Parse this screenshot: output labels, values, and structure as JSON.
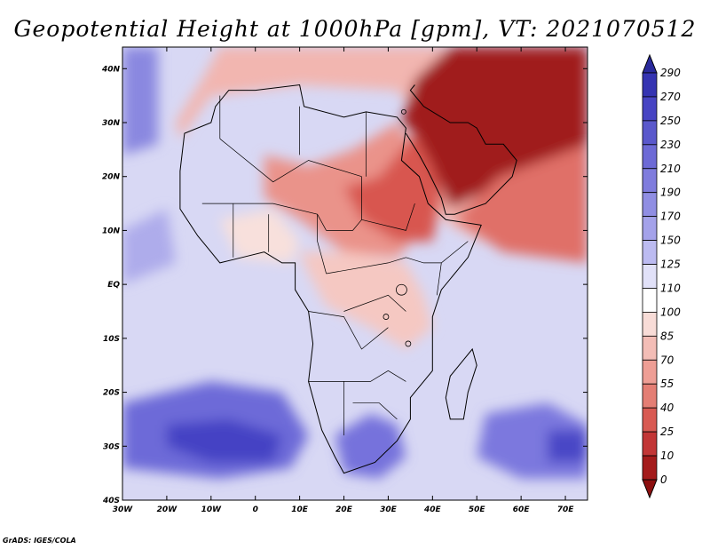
{
  "title": "Geopotential Height at 1000hPa [gpm], VT: 2021070512",
  "credit": "GrADS: IGES/COLA",
  "map": {
    "variable": "Geopotential Height",
    "level": "1000hPa",
    "units": "gpm",
    "valid_time": "2021070512",
    "lon_range": [
      -30,
      75
    ],
    "lat_range": [
      -40,
      44
    ],
    "lon_ticks": [
      {
        "lon": -30,
        "label": "30W"
      },
      {
        "lon": -20,
        "label": "20W"
      },
      {
        "lon": -10,
        "label": "10W"
      },
      {
        "lon": 0,
        "label": "0"
      },
      {
        "lon": 10,
        "label": "10E"
      },
      {
        "lon": 20,
        "label": "20E"
      },
      {
        "lon": 30,
        "label": "30E"
      },
      {
        "lon": 40,
        "label": "40E"
      },
      {
        "lon": 50,
        "label": "50E"
      },
      {
        "lon": 60,
        "label": "60E"
      },
      {
        "lon": 70,
        "label": "70E"
      }
    ],
    "lat_ticks": [
      {
        "lat": 40,
        "label": "40N"
      },
      {
        "lat": 30,
        "label": "30N"
      },
      {
        "lat": 20,
        "label": "20N"
      },
      {
        "lat": 10,
        "label": "10N"
      },
      {
        "lat": 0,
        "label": "EQ"
      },
      {
        "lat": -10,
        "label": "10S"
      },
      {
        "lat": -20,
        "label": "20S"
      },
      {
        "lat": -30,
        "label": "30S"
      },
      {
        "lat": -40,
        "label": "40S"
      }
    ],
    "background_color": "#d8d8f4",
    "field_regions": [
      {
        "name": "north-africa-low",
        "color": "#f2b6b0",
        "lonlat": [
          [
            -17,
            27
          ],
          [
            -10,
            35
          ],
          [
            10,
            37
          ],
          [
            32,
            36
          ],
          [
            38,
            30
          ],
          [
            40,
            14
          ],
          [
            44,
            11
          ],
          [
            51,
            8
          ],
          [
            75,
            8
          ],
          [
            75,
            44
          ],
          [
            -8,
            44
          ],
          [
            -12,
            38
          ],
          [
            -18,
            30
          ]
        ]
      },
      {
        "name": "sahara-low",
        "color": "#ea938a",
        "lonlat": [
          [
            2,
            24
          ],
          [
            12,
            22
          ],
          [
            22,
            25
          ],
          [
            32,
            30
          ],
          [
            38,
            22
          ],
          [
            40,
            12
          ],
          [
            32,
            5
          ],
          [
            20,
            6
          ],
          [
            10,
            12
          ],
          [
            2,
            16
          ]
        ]
      },
      {
        "name": "sudan-ethiopia-low",
        "color": "#d85650",
        "lonlat": [
          [
            20,
            18
          ],
          [
            28,
            20
          ],
          [
            36,
            28
          ],
          [
            40,
            30
          ],
          [
            42,
            16
          ],
          [
            40,
            8
          ],
          [
            32,
            8
          ],
          [
            24,
            12
          ]
        ]
      },
      {
        "name": "arabia-low",
        "color": "#a01b1b",
        "lonlat": [
          [
            33,
            30
          ],
          [
            36,
            38
          ],
          [
            44,
            44
          ],
          [
            75,
            44
          ],
          [
            75,
            20
          ],
          [
            64,
            16
          ],
          [
            54,
            18
          ],
          [
            44,
            14
          ],
          [
            40,
            22
          ],
          [
            36,
            28
          ]
        ]
      },
      {
        "name": "arabian-sea",
        "color": "#e07068",
        "lonlat": [
          [
            45,
            12
          ],
          [
            55,
            20
          ],
          [
            75,
            26
          ],
          [
            75,
            4
          ],
          [
            56,
            6
          ]
        ]
      },
      {
        "name": "central-africa",
        "color": "#f5c8c2",
        "lonlat": [
          [
            10,
            6
          ],
          [
            22,
            6
          ],
          [
            34,
            4
          ],
          [
            38,
            -2
          ],
          [
            40,
            -8
          ],
          [
            34,
            -12
          ],
          [
            26,
            -8
          ],
          [
            16,
            -4
          ],
          [
            12,
            2
          ]
        ]
      },
      {
        "name": "ghana-coast",
        "color": "#f8e0dc",
        "lonlat": [
          [
            -8,
            12
          ],
          [
            4,
            14
          ],
          [
            10,
            8
          ],
          [
            8,
            4
          ],
          [
            -4,
            5
          ]
        ]
      },
      {
        "name": "south-atlantic-high",
        "color": "#6d6ad8",
        "lonlat": [
          [
            -30,
            -22
          ],
          [
            -10,
            -18
          ],
          [
            6,
            -20
          ],
          [
            12,
            -28
          ],
          [
            8,
            -34
          ],
          [
            -8,
            -36
          ],
          [
            -30,
            -34
          ]
        ]
      },
      {
        "name": "south-atlantic-core",
        "color": "#4542c4",
        "lonlat": [
          [
            -20,
            -26
          ],
          [
            -6,
            -25
          ],
          [
            6,
            -28
          ],
          [
            4,
            -33
          ],
          [
            -10,
            -33
          ],
          [
            -20,
            -30
          ]
        ]
      },
      {
        "name": "south-africa-high",
        "color": "#7672dc",
        "lonlat": [
          [
            18,
            -28
          ],
          [
            26,
            -24
          ],
          [
            32,
            -26
          ],
          [
            34,
            -32
          ],
          [
            28,
            -36
          ],
          [
            20,
            -35
          ]
        ]
      },
      {
        "name": "mascarene-high",
        "color": "#7b78de",
        "lonlat": [
          [
            52,
            -24
          ],
          [
            66,
            -22
          ],
          [
            75,
            -26
          ],
          [
            75,
            -36
          ],
          [
            60,
            -36
          ],
          [
            50,
            -32
          ]
        ]
      },
      {
        "name": "mascarene-core",
        "color": "#4a47c6",
        "lonlat": [
          [
            66,
            -27
          ],
          [
            75,
            -27
          ],
          [
            75,
            -33
          ],
          [
            66,
            -33
          ]
        ]
      },
      {
        "name": "north-atlantic-high",
        "color": "#8a88e0",
        "lonlat": [
          [
            -30,
            44
          ],
          [
            -22,
            44
          ],
          [
            -22,
            26
          ],
          [
            -30,
            24
          ]
        ]
      },
      {
        "name": "atlantic-west-mid",
        "color": "#aeaceb",
        "lonlat": [
          [
            -30,
            10
          ],
          [
            -20,
            14
          ],
          [
            -18,
            4
          ],
          [
            -30,
            0
          ]
        ]
      }
    ],
    "land_outline": [
      [
        -17,
        21
      ],
      [
        -16,
        28
      ],
      [
        -10,
        30
      ],
      [
        -9,
        33
      ],
      [
        -6,
        36
      ],
      [
        0,
        36
      ],
      [
        10,
        37
      ],
      [
        11,
        33
      ],
      [
        20,
        31
      ],
      [
        25,
        32
      ],
      [
        32,
        31
      ],
      [
        34,
        29
      ],
      [
        33,
        23
      ],
      [
        37,
        20
      ],
      [
        39,
        15
      ],
      [
        43,
        12
      ],
      [
        51,
        11
      ],
      [
        48,
        5
      ],
      [
        42,
        -1
      ],
      [
        40,
        -6
      ],
      [
        40,
        -11
      ],
      [
        40,
        -16
      ],
      [
        35,
        -21
      ],
      [
        35,
        -25
      ],
      [
        32,
        -29
      ],
      [
        27,
        -33
      ],
      [
        20,
        -35
      ],
      [
        18,
        -32
      ],
      [
        15,
        -27
      ],
      [
        12,
        -18
      ],
      [
        13,
        -11
      ],
      [
        12,
        -5
      ],
      [
        9,
        -1
      ],
      [
        9,
        4
      ],
      [
        6,
        4
      ],
      [
        2,
        6
      ],
      [
        -3,
        5
      ],
      [
        -8,
        4
      ],
      [
        -11,
        7
      ],
      [
        -13,
        9
      ],
      [
        -17,
        14
      ],
      [
        -17,
        21
      ]
    ],
    "madagascar_outline": [
      [
        49,
        -12
      ],
      [
        50,
        -15
      ],
      [
        48,
        -20
      ],
      [
        47,
        -25
      ],
      [
        44,
        -25
      ],
      [
        43,
        -21
      ],
      [
        44,
        -17
      ],
      [
        47,
        -14
      ]
    ],
    "arabia_outline": [
      [
        34,
        28
      ],
      [
        37,
        24
      ],
      [
        39,
        21
      ],
      [
        42,
        16
      ],
      [
        43,
        13
      ],
      [
        45,
        13
      ],
      [
        52,
        15
      ],
      [
        58,
        20
      ],
      [
        59,
        23
      ],
      [
        56,
        26
      ],
      [
        52,
        26
      ],
      [
        50,
        29
      ],
      [
        48,
        30
      ],
      [
        44,
        30
      ],
      [
        38,
        33
      ],
      [
        35,
        36
      ],
      [
        36,
        37
      ]
    ],
    "borders": [
      [
        [
          -8,
          27
        ],
        [
          -8,
          35
        ]
      ],
      [
        [
          -8,
          27
        ],
        [
          4,
          19
        ],
        [
          12,
          23
        ],
        [
          24,
          20
        ]
      ],
      [
        [
          10,
          33
        ],
        [
          10,
          24
        ]
      ],
      [
        [
          25,
          32
        ],
        [
          25,
          20
        ]
      ],
      [
        [
          24,
          20
        ],
        [
          24,
          12
        ],
        [
          22,
          10
        ],
        [
          16,
          10
        ]
      ],
      [
        [
          -12,
          15
        ],
        [
          4,
          15
        ],
        [
          14,
          13
        ],
        [
          16,
          10
        ]
      ],
      [
        [
          14,
          13
        ],
        [
          14,
          8
        ],
        [
          16,
          2
        ]
      ],
      [
        [
          16,
          2
        ],
        [
          30,
          4
        ],
        [
          34,
          5
        ]
      ],
      [
        [
          24,
          12
        ],
        [
          34,
          10
        ],
        [
          36,
          15
        ]
      ],
      [
        [
          20,
          -5
        ],
        [
          30,
          -2
        ],
        [
          34,
          -5
        ]
      ],
      [
        [
          12,
          -5
        ],
        [
          20,
          -6
        ],
        [
          24,
          -12
        ],
        [
          30,
          -8
        ]
      ],
      [
        [
          12,
          -18
        ],
        [
          20,
          -18
        ],
        [
          26,
          -18
        ],
        [
          30,
          -16
        ],
        [
          34,
          -18
        ]
      ],
      [
        [
          20,
          -18
        ],
        [
          20,
          -28
        ]
      ],
      [
        [
          22,
          -22
        ],
        [
          28,
          -22
        ],
        [
          32,
          -25
        ]
      ],
      [
        [
          34,
          5
        ],
        [
          38,
          4
        ],
        [
          42,
          4
        ],
        [
          48,
          8
        ]
      ],
      [
        [
          42,
          4
        ],
        [
          41,
          -2
        ]
      ],
      [
        [
          -5,
          15
        ],
        [
          -5,
          5
        ]
      ],
      [
        [
          3,
          6
        ],
        [
          3,
          13
        ]
      ],
      [
        [
          39,
          15
        ],
        [
          43,
          12
        ]
      ]
    ],
    "lakes": [
      {
        "lon": 33,
        "lat": -1,
        "r": 1.2
      },
      {
        "lon": 34.5,
        "lat": -11,
        "r": 0.6
      },
      {
        "lon": 29.5,
        "lat": -6,
        "r": 0.6
      },
      {
        "lon": 33.5,
        "lat": 32,
        "r": 0.5
      }
    ]
  },
  "colorbar": {
    "levels": [
      "290",
      "270",
      "250",
      "230",
      "210",
      "190",
      "170",
      "150",
      "125",
      "110",
      "100",
      "85",
      "70",
      "55",
      "40",
      "25",
      "10",
      "0"
    ],
    "colors": [
      "#2a2a9c",
      "#3534b2",
      "#4744c3",
      "#5a58cc",
      "#6d6ad6",
      "#7f7cdd",
      "#908ee3",
      "#a4a2ea",
      "#bcbbf1",
      "#e1e1f8",
      "#ffffff",
      "#f8dcd7",
      "#f3bdb6",
      "#ee9e95",
      "#e47e74",
      "#d85a52",
      "#c23636",
      "#a41b1b",
      "#8c0f0f"
    ]
  }
}
